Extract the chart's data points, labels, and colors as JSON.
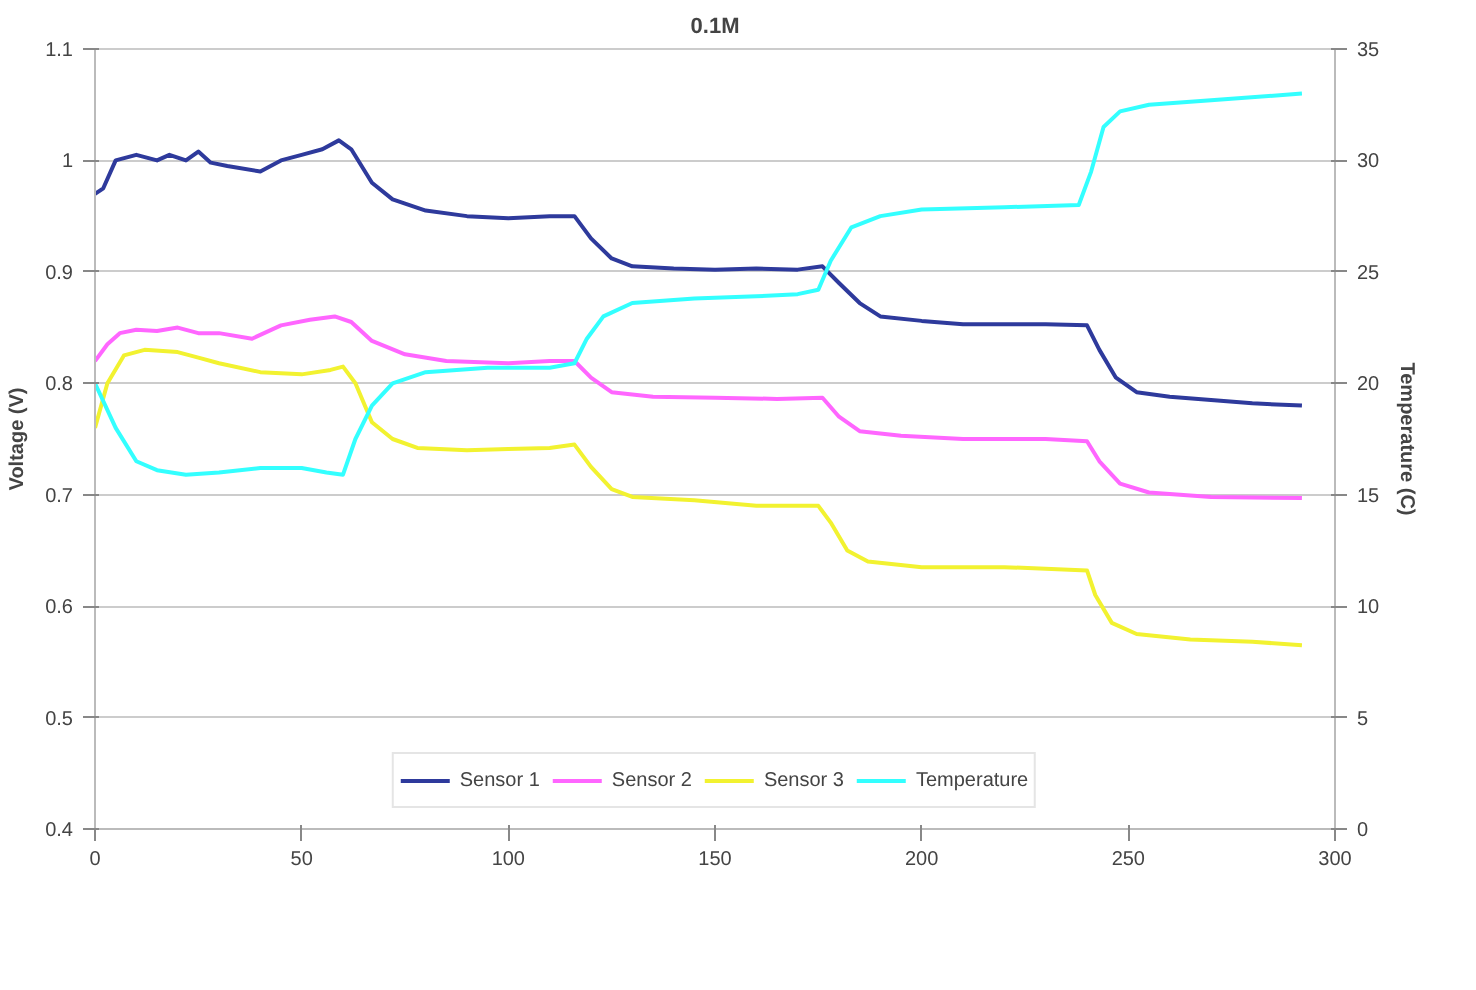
{
  "chart_data": {
    "type": "line",
    "title": "0.1M",
    "ylabel": "Voltage (V)",
    "y2label": "Temperature (C)",
    "xlim": [
      0,
      300
    ],
    "xticks": [
      0,
      50,
      100,
      150,
      200,
      250,
      300
    ],
    "ylim": [
      0.4,
      1.1
    ],
    "yticks": [
      0.4,
      0.5,
      0.6,
      0.7,
      0.8,
      0.9,
      1,
      1.1
    ],
    "y2lim": [
      0,
      35
    ],
    "y2ticks": [
      0,
      5,
      10,
      15,
      20,
      25,
      30,
      35
    ],
    "grid": "y",
    "legend": "bottom",
    "marker": "none",
    "line_style": "solid",
    "series": [
      {
        "name": "Sensor 1",
        "color": "#2e3a9c",
        "x": [
          0,
          2,
          5,
          10,
          15,
          18,
          22,
          25,
          28,
          32,
          40,
          45,
          50,
          55,
          59,
          62,
          67,
          72,
          80,
          90,
          100,
          110,
          116,
          120,
          125,
          130,
          140,
          150,
          160,
          170,
          176,
          180,
          185,
          190,
          200,
          210,
          220,
          230,
          240,
          243,
          247,
          252,
          260,
          270,
          280,
          292
        ],
        "values": [
          0.97,
          0.975,
          1.0,
          1.005,
          1.0,
          1.005,
          1.0,
          1.008,
          0.998,
          0.995,
          0.99,
          1.0,
          1.005,
          1.01,
          1.018,
          1.01,
          0.98,
          0.965,
          0.955,
          0.95,
          0.948,
          0.95,
          0.95,
          0.93,
          0.912,
          0.905,
          0.903,
          0.902,
          0.903,
          0.902,
          0.905,
          0.89,
          0.872,
          0.86,
          0.856,
          0.853,
          0.853,
          0.853,
          0.852,
          0.83,
          0.805,
          0.792,
          0.788,
          0.785,
          0.782,
          0.78
        ]
      },
      {
        "name": "Sensor 2",
        "color": "#ff66ff",
        "x": [
          0,
          3,
          6,
          10,
          15,
          20,
          25,
          30,
          38,
          45,
          52,
          58,
          62,
          67,
          75,
          85,
          100,
          110,
          116,
          120,
          125,
          135,
          150,
          165,
          176,
          180,
          185,
          195,
          210,
          230,
          240,
          243,
          248,
          255,
          270,
          292
        ],
        "values": [
          0.82,
          0.835,
          0.845,
          0.848,
          0.847,
          0.85,
          0.845,
          0.845,
          0.84,
          0.852,
          0.857,
          0.86,
          0.855,
          0.838,
          0.826,
          0.82,
          0.818,
          0.82,
          0.82,
          0.805,
          0.792,
          0.788,
          0.787,
          0.786,
          0.787,
          0.77,
          0.757,
          0.753,
          0.75,
          0.75,
          0.748,
          0.73,
          0.71,
          0.702,
          0.698,
          0.697
        ]
      },
      {
        "name": "Sensor 3",
        "color": "#f2f230",
        "x": [
          0,
          3,
          7,
          12,
          20,
          25,
          30,
          40,
          50,
          57,
          60,
          63,
          67,
          72,
          78,
          90,
          100,
          110,
          116,
          120,
          125,
          130,
          145,
          160,
          175,
          178,
          182,
          187,
          200,
          220,
          240,
          242,
          246,
          252,
          265,
          280,
          292
        ],
        "values": [
          0.76,
          0.8,
          0.825,
          0.83,
          0.828,
          0.823,
          0.818,
          0.81,
          0.808,
          0.812,
          0.815,
          0.8,
          0.765,
          0.75,
          0.742,
          0.74,
          0.741,
          0.742,
          0.745,
          0.725,
          0.705,
          0.698,
          0.695,
          0.69,
          0.69,
          0.675,
          0.65,
          0.64,
          0.635,
          0.635,
          0.632,
          0.61,
          0.585,
          0.575,
          0.57,
          0.568,
          0.565
        ]
      },
      {
        "name": "Temperature",
        "color": "#33ffff",
        "axis": "y2",
        "x": [
          0,
          5,
          10,
          15,
          22,
          30,
          40,
          50,
          56,
          60,
          63,
          67,
          72,
          80,
          95,
          110,
          116,
          119,
          123,
          130,
          145,
          160,
          170,
          175,
          178,
          183,
          190,
          200,
          220,
          238,
          241,
          244,
          248,
          255,
          270,
          292
        ],
        "values": [
          20,
          18,
          16.5,
          16.1,
          15.9,
          16.0,
          16.2,
          16.2,
          16.0,
          15.9,
          17.5,
          19,
          20,
          20.5,
          20.7,
          20.7,
          20.9,
          22,
          23,
          23.6,
          23.8,
          23.9,
          24,
          24.2,
          25.5,
          27,
          27.5,
          27.8,
          27.9,
          28,
          29.5,
          31.5,
          32.2,
          32.5,
          32.7,
          33
        ]
      }
    ]
  }
}
